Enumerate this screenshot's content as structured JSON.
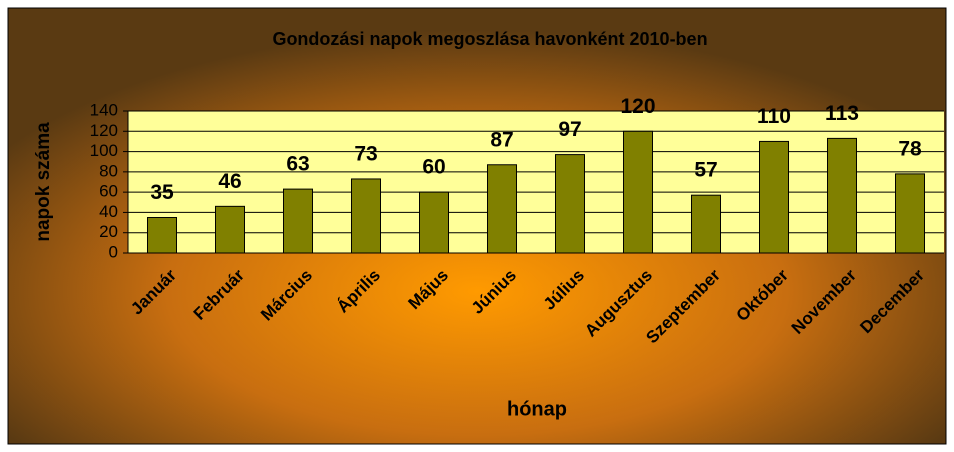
{
  "chart_data": {
    "type": "bar",
    "title": "Gondozási napok megoszlása havonként 2010-ben",
    "x_label": "hónap",
    "y_label": "napok száma",
    "categories": [
      "Január",
      "Február",
      "Március",
      "Április",
      "Május",
      "Június",
      "Július",
      "Augusztus",
      "Szeptember",
      "Október",
      "November",
      "December"
    ],
    "values": [
      35,
      46,
      63,
      73,
      60,
      87,
      97,
      120,
      57,
      110,
      113,
      78
    ],
    "color": "#808000",
    "ylim": [
      0,
      140
    ],
    "yticks": [
      0,
      20,
      40,
      60,
      80,
      100,
      120,
      140
    ],
    "grid": true
  }
}
